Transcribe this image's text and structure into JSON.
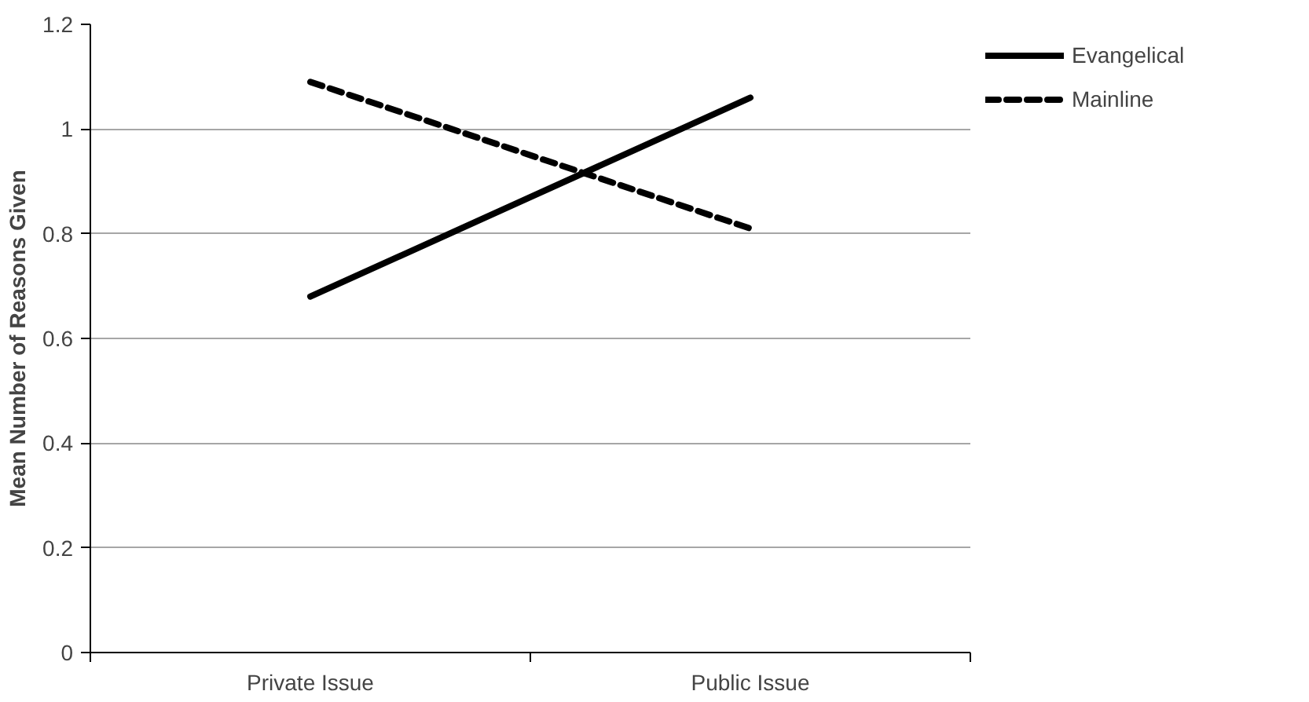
{
  "chart_data": {
    "type": "line",
    "ylabel": "Mean Number of Reasons Given",
    "categories": [
      "Private Issue",
      "Public Issue"
    ],
    "series": [
      {
        "name": "Evangelical",
        "color": "#000000",
        "values": [
          0.68,
          1.06
        ],
        "line_style": "solid"
      },
      {
        "name": "Mainline",
        "color": "#000000",
        "values": [
          1.09,
          0.81
        ],
        "line_style": "dashed"
      }
    ],
    "ylim": [
      0,
      1.2
    ],
    "yticks": [
      0,
      0.2,
      0.4,
      0.6,
      0.8,
      1,
      1.2
    ],
    "grid": "y",
    "legend": "right",
    "marker": "none"
  }
}
